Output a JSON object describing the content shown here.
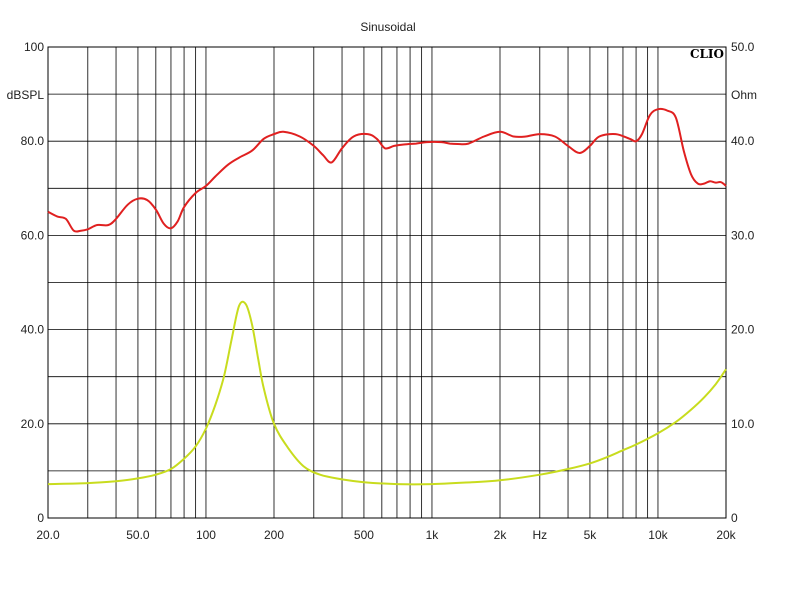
{
  "chart_data": {
    "type": "line",
    "title": "Sinusoidal",
    "brand": "CLIO",
    "x_scale": "log",
    "xlim": [
      20,
      20000
    ],
    "y_left_label": "dBSPL",
    "y_right_label": "Ohm",
    "ylim_left": [
      0,
      100
    ],
    "ylim_right": [
      0,
      50
    ],
    "x_tick_labels": [
      {
        "value": 20,
        "label": "20.0"
      },
      {
        "value": 50,
        "label": "50.0"
      },
      {
        "value": 100,
        "label": "100"
      },
      {
        "value": 200,
        "label": "200"
      },
      {
        "value": 500,
        "label": "500"
      },
      {
        "value": 1000,
        "label": "1k"
      },
      {
        "value": 2000,
        "label": "2k"
      },
      {
        "value": 3000,
        "label": "Hz"
      },
      {
        "value": 5000,
        "label": "5k"
      },
      {
        "value": 10000,
        "label": "10k"
      },
      {
        "value": 20000,
        "label": "20k"
      }
    ],
    "y_left_tick_labels": [
      {
        "value": 0,
        "label": "0"
      },
      {
        "value": 20,
        "label": "20.0"
      },
      {
        "value": 40,
        "label": "40.0"
      },
      {
        "value": 60,
        "label": "60.0"
      },
      {
        "value": 80,
        "label": "80.0"
      },
      {
        "value": 100,
        "label": "100"
      }
    ],
    "y_right_tick_labels": [
      {
        "value": 0,
        "label": "0"
      },
      {
        "value": 10,
        "label": "10.0"
      },
      {
        "value": 20,
        "label": "20.0"
      },
      {
        "value": 30,
        "label": "30.0"
      },
      {
        "value": 40,
        "label": "40.0"
      },
      {
        "value": 50,
        "label": "50.0"
      }
    ],
    "y_gridlines": [
      10,
      20,
      30,
      40,
      50,
      60,
      70,
      80,
      90
    ],
    "x_gridlines": [
      30,
      40,
      50,
      60,
      70,
      80,
      90,
      100,
      200,
      300,
      400,
      500,
      600,
      700,
      800,
      900,
      1000,
      2000,
      3000,
      4000,
      5000,
      6000,
      7000,
      8000,
      9000,
      10000
    ],
    "grid": true,
    "series": [
      {
        "axis": "left",
        "color": "#e02020",
        "points": [
          [
            20,
            65
          ],
          [
            22,
            64
          ],
          [
            24,
            63.5
          ],
          [
            26,
            61
          ],
          [
            28,
            61
          ],
          [
            30,
            61.3
          ],
          [
            33,
            62.2
          ],
          [
            37,
            62.2
          ],
          [
            40,
            63.5
          ],
          [
            45,
            66.5
          ],
          [
            50,
            67.8
          ],
          [
            55,
            67.5
          ],
          [
            60,
            65.5
          ],
          [
            65,
            62.5
          ],
          [
            70,
            61.5
          ],
          [
            75,
            63
          ],
          [
            80,
            66
          ],
          [
            90,
            69
          ],
          [
            100,
            70.5
          ],
          [
            110,
            72.5
          ],
          [
            125,
            75
          ],
          [
            140,
            76.5
          ],
          [
            160,
            78
          ],
          [
            180,
            80.5
          ],
          [
            200,
            81.5
          ],
          [
            220,
            82
          ],
          [
            260,
            81
          ],
          [
            300,
            79
          ],
          [
            330,
            77
          ],
          [
            360,
            75.5
          ],
          [
            400,
            78.5
          ],
          [
            450,
            81
          ],
          [
            520,
            81.5
          ],
          [
            570,
            80.5
          ],
          [
            620,
            78.5
          ],
          [
            680,
            79
          ],
          [
            750,
            79.3
          ],
          [
            850,
            79.5
          ],
          [
            950,
            79.8
          ],
          [
            1100,
            79.8
          ],
          [
            1200,
            79.5
          ],
          [
            1300,
            79.4
          ],
          [
            1450,
            79.5
          ],
          [
            1700,
            81
          ],
          [
            2000,
            82
          ],
          [
            2300,
            81
          ],
          [
            2600,
            81
          ],
          [
            3000,
            81.5
          ],
          [
            3500,
            81
          ],
          [
            4000,
            79
          ],
          [
            4500,
            77.5
          ],
          [
            5000,
            79
          ],
          [
            5500,
            81
          ],
          [
            6500,
            81.5
          ],
          [
            7500,
            80.5
          ],
          [
            8000,
            80
          ],
          [
            8500,
            81.5
          ],
          [
            9200,
            85.5
          ],
          [
            10000,
            86.8
          ],
          [
            11000,
            86.5
          ],
          [
            12000,
            85
          ],
          [
            13000,
            78
          ],
          [
            14000,
            73
          ],
          [
            15000,
            71
          ],
          [
            16000,
            71
          ],
          [
            17000,
            71.5
          ],
          [
            18000,
            71.2
          ],
          [
            19000,
            71.3
          ],
          [
            20000,
            70.5
          ]
        ]
      },
      {
        "axis": "right",
        "color": "#c8dc1e",
        "points": [
          [
            20,
            3.6
          ],
          [
            30,
            3.7
          ],
          [
            40,
            3.9
          ],
          [
            50,
            4.2
          ],
          [
            60,
            4.6
          ],
          [
            70,
            5.2
          ],
          [
            80,
            6.3
          ],
          [
            90,
            7.6
          ],
          [
            100,
            9.5
          ],
          [
            110,
            12
          ],
          [
            120,
            15
          ],
          [
            130,
            19
          ],
          [
            140,
            22.5
          ],
          [
            150,
            22.7
          ],
          [
            160,
            20.5
          ],
          [
            170,
            17
          ],
          [
            180,
            13.8
          ],
          [
            200,
            10
          ],
          [
            230,
            7.5
          ],
          [
            270,
            5.5
          ],
          [
            320,
            4.6
          ],
          [
            400,
            4.1
          ],
          [
            500,
            3.8
          ],
          [
            700,
            3.6
          ],
          [
            1000,
            3.6
          ],
          [
            1500,
            3.8
          ],
          [
            2000,
            4
          ],
          [
            3000,
            4.6
          ],
          [
            4000,
            5.2
          ],
          [
            5000,
            5.8
          ],
          [
            6000,
            6.5
          ],
          [
            7000,
            7.2
          ],
          [
            8000,
            7.8
          ],
          [
            10000,
            9
          ],
          [
            12000,
            10.2
          ],
          [
            14000,
            11.5
          ],
          [
            16000,
            12.8
          ],
          [
            18000,
            14.2
          ],
          [
            20000,
            15.8
          ]
        ]
      }
    ]
  }
}
